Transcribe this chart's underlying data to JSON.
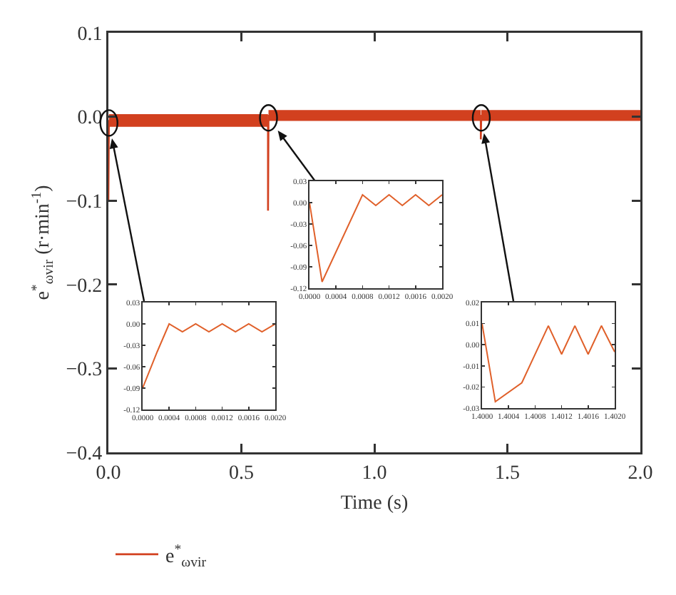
{
  "chart_data": [
    {
      "type": "line",
      "xlabel": "Time (s)",
      "ylabel": "e$^{*}$$_{ωvir}$ (r·min$^{-1}$)",
      "x": [
        0,
        0.002,
        0.6,
        0.6002,
        0.602,
        1.4,
        1.4002,
        1.402,
        2.0
      ],
      "series": [
        {
          "name": "e$^{*}$$_{ωvir}$",
          "color": "#d2401f",
          "values": [
            -0.1,
            -0.005,
            -0.005,
            -0.112,
            0.001,
            0.001,
            -0.027,
            0.001,
            0.001
          ],
          "lower": [
            null,
            -0.012,
            -0.012,
            null,
            -0.005,
            -0.005,
            null,
            -0.005,
            -0.005
          ],
          "upper": [
            null,
            0.003,
            0.003,
            null,
            0.008,
            0.008,
            null,
            0.008,
            0.008
          ]
        }
      ],
      "xlim": [
        0,
        2.0
      ],
      "xticks": [
        {
          "value": 0,
          "label": "0.0"
        },
        {
          "value": 0.5,
          "label": "0.5"
        },
        {
          "value": 1.0,
          "label": "1.0"
        },
        {
          "value": 1.5,
          "label": "1.5"
        },
        {
          "value": 2.0,
          "label": "2.0"
        }
      ],
      "ylim": [
        -0.4,
        0.1
      ],
      "yticks": [
        {
          "value": -0.4,
          "label": "−0.4"
        },
        {
          "value": -0.3,
          "label": "−0.3"
        },
        {
          "value": -0.2,
          "label": "−0.2"
        },
        {
          "value": -0.1,
          "label": "−0.1"
        },
        {
          "value": 0,
          "label": "0.0"
        },
        {
          "value": 0.1,
          "label": "0.1"
        }
      ],
      "legend": "bottom left",
      "marker": "none",
      "line_style": "solid"
    },
    {
      "type": "line",
      "x": [
        0,
        0.00022,
        0.0004,
        0.0006,
        0.0008,
        0.001,
        0.0012,
        0.0014,
        0.0016,
        0.0018,
        0.002
      ],
      "series": [
        {
          "color": "#e0602a",
          "values": [
            -0.09,
            -0.039,
            0.0,
            -0.011,
            0.0,
            -0.011,
            0.0,
            -0.011,
            0.0,
            -0.011,
            0.0
          ]
        }
      ],
      "xlim": [
        0,
        0.002
      ],
      "xticks": [
        {
          "value": 0,
          "label": "0.0000"
        },
        {
          "value": 0.0004,
          "label": "0.0004"
        },
        {
          "value": 0.0008,
          "label": "0.0008"
        },
        {
          "value": 0.0012,
          "label": "0.0012"
        },
        {
          "value": 0.0016,
          "label": "0.0016"
        },
        {
          "value": 0.002,
          "label": "0.0020"
        }
      ],
      "ylim": [
        -0.12,
        0.03
      ],
      "yticks": [
        {
          "value": -0.12,
          "label": "-0.12"
        },
        {
          "value": -0.09,
          "label": "-0.09"
        },
        {
          "value": -0.06,
          "label": "-0.06"
        },
        {
          "value": -0.03,
          "label": "-0.03"
        },
        {
          "value": 0,
          "label": "0.00"
        },
        {
          "value": 0.03,
          "label": "0.03"
        }
      ],
      "marker": "none",
      "line_style": "solid"
    },
    {
      "type": "line",
      "x": [
        0,
        0.00019,
        0.0008,
        0.001,
        0.0012,
        0.0014,
        0.0016,
        0.0018,
        0.002
      ],
      "series": [
        {
          "color": "#e0602a",
          "values": [
            0.0,
            -0.111,
            0.011,
            -0.004,
            0.011,
            -0.004,
            0.011,
            -0.004,
            0.011
          ]
        }
      ],
      "xlim": [
        0,
        0.002
      ],
      "xticks": [
        {
          "value": 0,
          "label": "0.0000"
        },
        {
          "value": 0.0004,
          "label": "0.0004"
        },
        {
          "value": 0.0008,
          "label": "0.0008"
        },
        {
          "value": 0.0012,
          "label": "0.0012"
        },
        {
          "value": 0.0016,
          "label": "0.0016"
        },
        {
          "value": 0.002,
          "label": "0.0020"
        }
      ],
      "ylim": [
        -0.12,
        0.03
      ],
      "yticks": [
        {
          "value": -0.12,
          "label": "-0.12"
        },
        {
          "value": -0.09,
          "label": "-0.09"
        },
        {
          "value": -0.06,
          "label": "-0.06"
        },
        {
          "value": -0.03,
          "label": "-0.03"
        },
        {
          "value": 0,
          "label": "0.00"
        },
        {
          "value": 0.03,
          "label": "0.03"
        }
      ],
      "marker": "none",
      "line_style": "solid"
    },
    {
      "type": "line",
      "x": [
        1.4,
        1.4002,
        1.4006,
        1.401,
        1.4012,
        1.4014,
        1.4016,
        1.4018,
        1.402
      ],
      "series": [
        {
          "color": "#e0602a",
          "values": [
            0.01,
            -0.027,
            -0.018,
            0.009,
            -0.0045,
            0.009,
            -0.0045,
            0.009,
            -0.0034
          ]
        }
      ],
      "xlim": [
        1.4,
        1.402
      ],
      "xticks": [
        {
          "value": 1.4,
          "label": "1.4000"
        },
        {
          "value": 1.4004,
          "label": "1.4004"
        },
        {
          "value": 1.4008,
          "label": "1.4008"
        },
        {
          "value": 1.4012,
          "label": "1.4012"
        },
        {
          "value": 1.4016,
          "label": "1.4016"
        },
        {
          "value": 1.402,
          "label": "1.4020"
        }
      ],
      "ylim": [
        -0.03,
        0.02
      ],
      "yticks": [
        {
          "value": -0.03,
          "label": "-0.03"
        },
        {
          "value": -0.02,
          "label": "-0.02"
        },
        {
          "value": -0.01,
          "label": "-0.01"
        },
        {
          "value": 0,
          "label": "0.00"
        },
        {
          "value": 0.01,
          "label": "0.01"
        },
        {
          "value": 0.02,
          "label": "0.02"
        }
      ],
      "marker": "none",
      "line_style": "solid"
    }
  ]
}
